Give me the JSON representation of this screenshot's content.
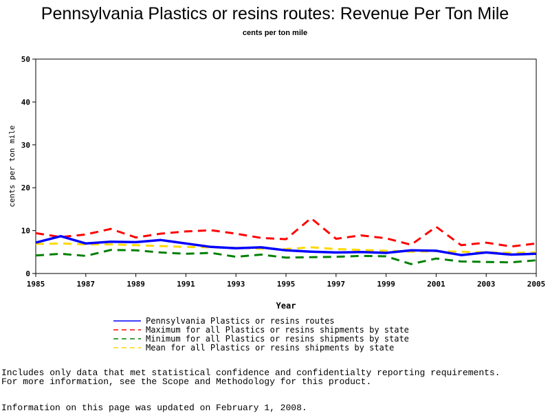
{
  "chart_data": {
    "type": "line",
    "title": "Pennsylvania Plastics or resins routes: Revenue Per Ton Mile",
    "subtitle": "cents per ton mile",
    "xlabel": "Year",
    "ylabel": "cents per ton mile",
    "xlim": [
      1985,
      2005
    ],
    "ylim": [
      0,
      50
    ],
    "x_ticks": [
      1985,
      1987,
      1989,
      1991,
      1993,
      1995,
      1997,
      1999,
      2001,
      2003,
      2005
    ],
    "y_ticks": [
      0,
      10,
      20,
      30,
      40,
      50
    ],
    "grid": false,
    "legend_position": "bottom",
    "x": [
      1985,
      1986,
      1987,
      1988,
      1989,
      1990,
      1991,
      1992,
      1993,
      1994,
      1995,
      1996,
      1997,
      1998,
      1999,
      2000,
      2001,
      2002,
      2003,
      2004,
      2005
    ],
    "series": [
      {
        "name": "Pennsylvania Plastics or resins routes",
        "color": "#0000ff",
        "dash": "solid",
        "values": [
          7.2,
          8.7,
          7.0,
          7.4,
          7.3,
          7.8,
          7.0,
          6.2,
          5.9,
          6.1,
          5.4,
          5.1,
          4.9,
          5.0,
          4.8,
          5.4,
          5.3,
          4.3,
          4.9,
          4.4,
          4.6
        ]
      },
      {
        "name": "Maximum for all Plastics or resins shipments by state",
        "color": "#ff0000",
        "dash": "dashed",
        "values": [
          9.4,
          8.5,
          9.1,
          10.4,
          8.4,
          9.3,
          9.8,
          10.1,
          9.3,
          8.3,
          8.0,
          12.9,
          8.1,
          8.9,
          8.2,
          6.7,
          10.9,
          6.6,
          7.2,
          6.3,
          7.0
        ]
      },
      {
        "name": "Minimum for all Plastics or resins shipments by state",
        "color": "#008000",
        "dash": "dashed",
        "values": [
          4.2,
          4.6,
          4.1,
          5.5,
          5.4,
          4.9,
          4.6,
          4.8,
          3.9,
          4.4,
          3.7,
          3.8,
          3.9,
          4.1,
          4.0,
          2.2,
          3.5,
          2.8,
          2.7,
          2.6,
          3.1
        ]
      },
      {
        "name": "Mean for all Plastics or resins shipments by state",
        "color": "#ffd700",
        "dash": "dashed",
        "values": [
          6.9,
          7.0,
          6.8,
          6.8,
          6.6,
          6.4,
          6.2,
          6.1,
          6.0,
          5.8,
          5.7,
          6.1,
          5.7,
          5.5,
          5.3,
          5.1,
          5.2,
          5.1,
          4.9,
          4.8,
          4.9
        ]
      }
    ]
  },
  "footnotes": {
    "line1": "Includes only data that met statistical confidence and confidentialty reporting requirements.",
    "line2": "For more information, see the Scope and Methodology for this product.",
    "line3": "Information on this page was updated on February 1, 2008."
  }
}
